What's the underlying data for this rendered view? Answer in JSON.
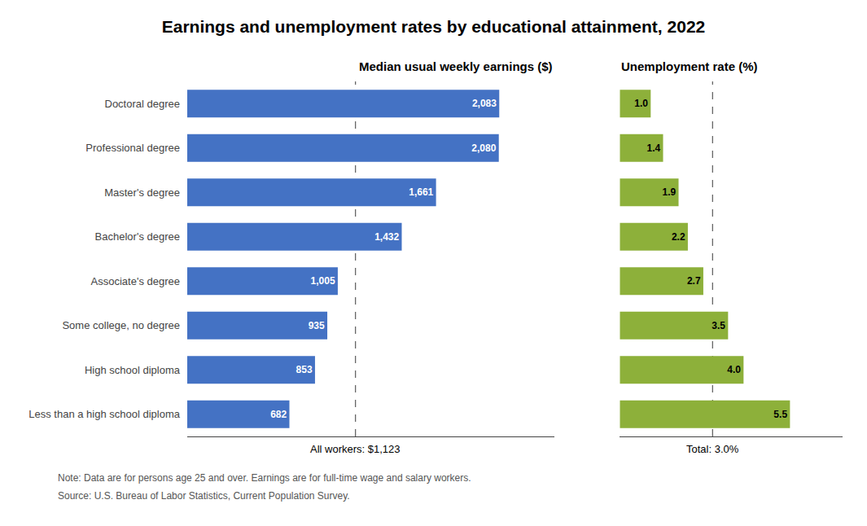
{
  "chart_data": [
    {
      "type": "bar",
      "orientation": "horizontal",
      "title": "Earnings and unemployment rates by educational attainment, 2022",
      "subtitle": "Median usual weekly earnings ($)",
      "categories": [
        "Doctoral degree",
        "Professional degree",
        "Master's degree",
        "Bachelor's degree",
        "Associate's degree",
        "Some college, no degree",
        "High school diploma",
        "Less than a high school diploma"
      ],
      "values": [
        2083,
        2080,
        1661,
        1432,
        1005,
        935,
        853,
        682
      ],
      "value_labels": [
        "2,083",
        "2,080",
        "1,661",
        "1,432",
        "1,005",
        "935",
        "853",
        "682"
      ],
      "data_labels": true,
      "color": "#4472C4",
      "xlim": [
        0,
        2450
      ],
      "reference": {
        "value": 1123,
        "label": "All workers: $1,123"
      },
      "tick_labels": "y",
      "grid": false,
      "annotations": [
        "Note: Data are for persons age 25 and over. Earnings are for full-time wage and salary workers.",
        "Source: U.S. Bureau of Labor Statistics, Current Population Survey."
      ]
    },
    {
      "type": "bar",
      "orientation": "horizontal",
      "subtitle": "Unemployment rate (%)",
      "categories": [
        "Doctoral degree",
        "Professional degree",
        "Master's degree",
        "Bachelor's degree",
        "Associate's degree",
        "Some college, no degree",
        "High school diploma",
        "Less than a high school diploma"
      ],
      "values": [
        1.0,
        1.4,
        1.9,
        2.2,
        2.7,
        3.5,
        4.0,
        5.5
      ],
      "value_labels": [
        "1.0",
        "1.4",
        "1.9",
        "2.2",
        "2.7",
        "3.5",
        "4.0",
        "5.5"
      ],
      "data_labels": true,
      "color": "#8DB03A",
      "xlim": [
        0,
        7.2
      ],
      "reference": {
        "value": 3.0,
        "label": "Total: 3.0%"
      },
      "tick_labels": false,
      "grid": false
    }
  ]
}
